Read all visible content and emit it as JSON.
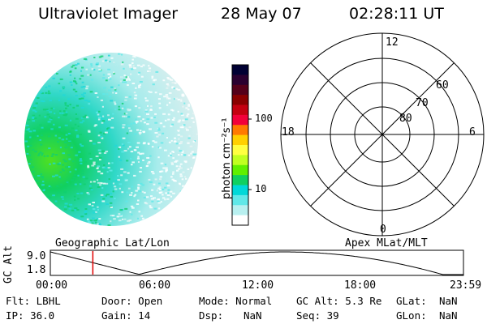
{
  "header": {
    "instrument": "Ultraviolet Imager",
    "date": "28 May 07",
    "time": "02:28:11 UT"
  },
  "colorbar": {
    "unit_label": "photon cm⁻²s⁻¹",
    "ticks": [
      "100",
      "10"
    ],
    "colors": [
      "#000033",
      "#2a0030",
      "#55001a",
      "#8a0000",
      "#c40010",
      "#f2003a",
      "#ff7a00",
      "#ffd000",
      "#ffff40",
      "#c0ff20",
      "#60f000",
      "#10d060",
      "#00d8d8",
      "#60e8e8",
      "#b8f0f0",
      "#ffffff"
    ]
  },
  "polar_grid": {
    "mlt_labels": {
      "top": "12",
      "left": "18",
      "right": "6",
      "bottom": "0"
    },
    "lat_labels": [
      "60",
      "70",
      "80"
    ]
  },
  "timeline": {
    "ylabel": "GC Alt",
    "y_ticks": [
      "9.0",
      "1.8"
    ],
    "left_caption": "Geographic Lat/Lon",
    "right_caption": "Apex MLat/MLT",
    "x_ticks": [
      "00:00",
      "06:00",
      "12:00",
      "18:00",
      "23:59"
    ],
    "marker_time_hours": 2.47,
    "marker_color": "#e00000"
  },
  "footer": [
    [
      {
        "label": "Flt:",
        "value": "LBHL"
      },
      {
        "label": "Door:",
        "value": "Open"
      },
      {
        "label": "Mode:",
        "value": "Normal"
      },
      {
        "label": "GC Alt:",
        "value": "5.3 Re"
      },
      {
        "label": "GLat:",
        "value": "NaN"
      }
    ],
    [
      {
        "label": "IP:",
        "value": "36.0"
      },
      {
        "label": "Gain:",
        "value": "14"
      },
      {
        "label": "Dsp:",
        "value": "NaN"
      },
      {
        "label": "Seq:",
        "value": "39"
      },
      {
        "label": "GLon:",
        "value": "NaN"
      }
    ]
  ]
}
